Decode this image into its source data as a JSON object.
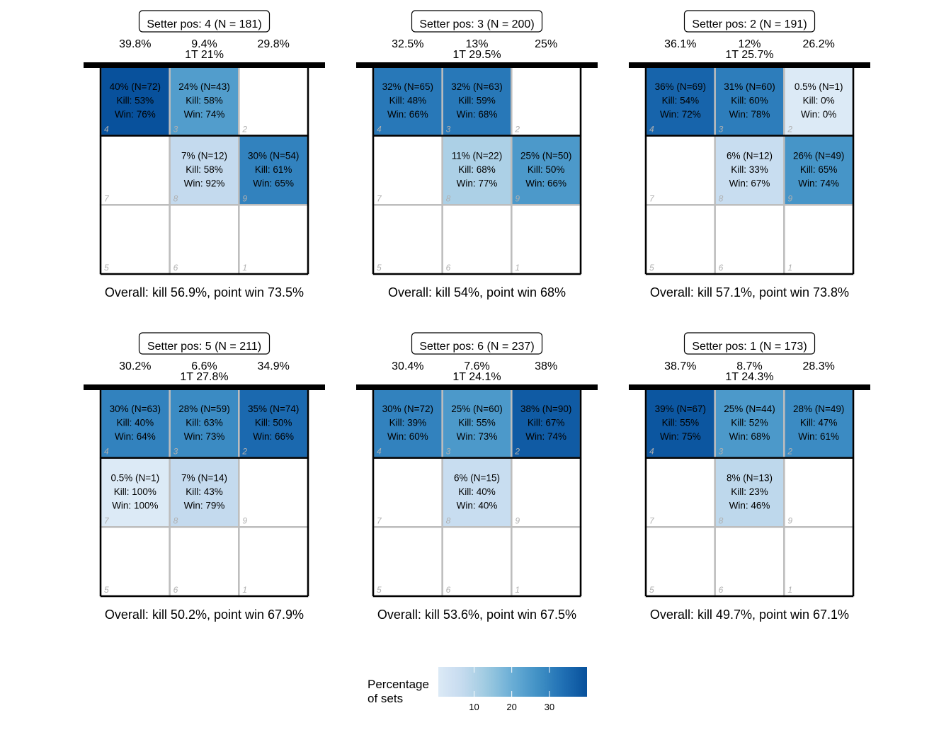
{
  "chart_data": {
    "type": "heatmap",
    "color_scale": [
      "#deebf7",
      "#c6dbef",
      "#9ecae1",
      "#6baed6",
      "#4292c6",
      "#2171b5",
      "#08519c"
    ],
    "fill_range": [
      0,
      40
    ],
    "legend": {
      "title_line1": "Percentage",
      "title_line2": "of sets",
      "ticks": [
        10,
        20,
        30
      ],
      "tick_labels": [
        "10",
        "20",
        "30"
      ],
      "placement": "bottom"
    },
    "panels": [
      {
        "title": "Setter pos: 4 (N = 181)",
        "head_left": "39.8%",
        "head_mid": "9.4%",
        "head_right": "29.8%",
        "head_1t": "1T 21%",
        "overall": "Overall: kill 56.9%, point win 73.5%",
        "cells": [
          {
            "zone": "4",
            "pct": 40,
            "line1": "40% (N=72)",
            "line2": "Kill: 53%",
            "line3": "Win: 76%"
          },
          {
            "zone": "3",
            "pct": 24,
            "line1": "24% (N=43)",
            "line2": "Kill: 58%",
            "line3": "Win: 74%"
          },
          {
            "zone": "2",
            "pct": null,
            "line1": "",
            "line2": "",
            "line3": ""
          },
          {
            "zone": "7",
            "pct": null,
            "line1": "",
            "line2": "",
            "line3": ""
          },
          {
            "zone": "8",
            "pct": 7,
            "line1": "7% (N=12)",
            "line2": "Kill: 58%",
            "line3": "Win: 92%"
          },
          {
            "zone": "9",
            "pct": 30,
            "line1": "30% (N=54)",
            "line2": "Kill: 61%",
            "line3": "Win: 65%"
          },
          {
            "zone": "5",
            "pct": null,
            "line1": "",
            "line2": "",
            "line3": ""
          },
          {
            "zone": "6",
            "pct": null,
            "line1": "",
            "line2": "",
            "line3": ""
          },
          {
            "zone": "1",
            "pct": null,
            "line1": "",
            "line2": "",
            "line3": ""
          }
        ]
      },
      {
        "title": "Setter pos: 3 (N = 200)",
        "head_left": "32.5%",
        "head_mid": "13%",
        "head_right": "25%",
        "head_1t": "1T 29.5%",
        "overall": "Overall: kill 54%, point win 68%",
        "cells": [
          {
            "zone": "4",
            "pct": 32,
            "line1": "32% (N=65)",
            "line2": "Kill: 48%",
            "line3": "Win: 66%"
          },
          {
            "zone": "3",
            "pct": 32,
            "line1": "32% (N=63)",
            "line2": "Kill: 59%",
            "line3": "Win: 68%"
          },
          {
            "zone": "2",
            "pct": null,
            "line1": "",
            "line2": "",
            "line3": ""
          },
          {
            "zone": "7",
            "pct": null,
            "line1": "",
            "line2": "",
            "line3": ""
          },
          {
            "zone": "8",
            "pct": 11,
            "line1": "11% (N=22)",
            "line2": "Kill: 68%",
            "line3": "Win: 77%"
          },
          {
            "zone": "9",
            "pct": 25,
            "line1": "25% (N=50)",
            "line2": "Kill: 50%",
            "line3": "Win: 66%"
          },
          {
            "zone": "5",
            "pct": null,
            "line1": "",
            "line2": "",
            "line3": ""
          },
          {
            "zone": "6",
            "pct": null,
            "line1": "",
            "line2": "",
            "line3": ""
          },
          {
            "zone": "1",
            "pct": null,
            "line1": "",
            "line2": "",
            "line3": ""
          }
        ]
      },
      {
        "title": "Setter pos: 2 (N = 191)",
        "head_left": "36.1%",
        "head_mid": "12%",
        "head_right": "26.2%",
        "head_1t": "1T 25.7%",
        "overall": "Overall: kill 57.1%, point win 73.8%",
        "cells": [
          {
            "zone": "4",
            "pct": 36,
            "line1": "36% (N=69)",
            "line2": "Kill: 54%",
            "line3": "Win: 72%"
          },
          {
            "zone": "3",
            "pct": 31,
            "line1": "31% (N=60)",
            "line2": "Kill: 60%",
            "line3": "Win: 78%"
          },
          {
            "zone": "2",
            "pct": 0.5,
            "line1": "0.5% (N=1)",
            "line2": "Kill: 0%",
            "line3": "Win: 0%"
          },
          {
            "zone": "7",
            "pct": null,
            "line1": "",
            "line2": "",
            "line3": ""
          },
          {
            "zone": "8",
            "pct": 6,
            "line1": "6% (N=12)",
            "line2": "Kill: 33%",
            "line3": "Win: 67%"
          },
          {
            "zone": "9",
            "pct": 26,
            "line1": "26% (N=49)",
            "line2": "Kill: 65%",
            "line3": "Win: 74%"
          },
          {
            "zone": "5",
            "pct": null,
            "line1": "",
            "line2": "",
            "line3": ""
          },
          {
            "zone": "6",
            "pct": null,
            "line1": "",
            "line2": "",
            "line3": ""
          },
          {
            "zone": "1",
            "pct": null,
            "line1": "",
            "line2": "",
            "line3": ""
          }
        ]
      },
      {
        "title": "Setter pos: 5 (N = 211)",
        "head_left": "30.2%",
        "head_mid": "6.6%",
        "head_right": "34.9%",
        "head_1t": "1T 27.8%",
        "overall": "Overall: kill 50.2%, point win 67.9%",
        "cells": [
          {
            "zone": "4",
            "pct": 30,
            "line1": "30% (N=63)",
            "line2": "Kill: 40%",
            "line3": "Win: 64%"
          },
          {
            "zone": "3",
            "pct": 28,
            "line1": "28% (N=59)",
            "line2": "Kill: 63%",
            "line3": "Win: 73%"
          },
          {
            "zone": "2",
            "pct": 35,
            "line1": "35% (N=74)",
            "line2": "Kill: 50%",
            "line3": "Win: 66%"
          },
          {
            "zone": "7",
            "pct": 0.5,
            "line1": "0.5% (N=1)",
            "line2": "Kill: 100%",
            "line3": "Win: 100%"
          },
          {
            "zone": "8",
            "pct": 7,
            "line1": "7% (N=14)",
            "line2": "Kill: 43%",
            "line3": "Win: 79%"
          },
          {
            "zone": "9",
            "pct": null,
            "line1": "",
            "line2": "",
            "line3": ""
          },
          {
            "zone": "5",
            "pct": null,
            "line1": "",
            "line2": "",
            "line3": ""
          },
          {
            "zone": "6",
            "pct": null,
            "line1": "",
            "line2": "",
            "line3": ""
          },
          {
            "zone": "1",
            "pct": null,
            "line1": "",
            "line2": "",
            "line3": ""
          }
        ]
      },
      {
        "title": "Setter pos: 6 (N = 237)",
        "head_left": "30.4%",
        "head_mid": "7.6%",
        "head_right": "38%",
        "head_1t": "1T 24.1%",
        "overall": "Overall: kill 53.6%, point win 67.5%",
        "cells": [
          {
            "zone": "4",
            "pct": 30,
            "line1": "30% (N=72)",
            "line2": "Kill: 39%",
            "line3": "Win: 60%"
          },
          {
            "zone": "3",
            "pct": 25,
            "line1": "25% (N=60)",
            "line2": "Kill: 55%",
            "line3": "Win: 73%"
          },
          {
            "zone": "2",
            "pct": 38,
            "line1": "38% (N=90)",
            "line2": "Kill: 67%",
            "line3": "Win: 74%"
          },
          {
            "zone": "7",
            "pct": null,
            "line1": "",
            "line2": "",
            "line3": ""
          },
          {
            "zone": "8",
            "pct": 6,
            "line1": "6% (N=15)",
            "line2": "Kill: 40%",
            "line3": "Win: 40%"
          },
          {
            "zone": "9",
            "pct": null,
            "line1": "",
            "line2": "",
            "line3": ""
          },
          {
            "zone": "5",
            "pct": null,
            "line1": "",
            "line2": "",
            "line3": ""
          },
          {
            "zone": "6",
            "pct": null,
            "line1": "",
            "line2": "",
            "line3": ""
          },
          {
            "zone": "1",
            "pct": null,
            "line1": "",
            "line2": "",
            "line3": ""
          }
        ]
      },
      {
        "title": "Setter pos: 1 (N = 173)",
        "head_left": "38.7%",
        "head_mid": "8.7%",
        "head_right": "28.3%",
        "head_1t": "1T 24.3%",
        "overall": "Overall: kill 49.7%, point win 67.1%",
        "cells": [
          {
            "zone": "4",
            "pct": 39,
            "line1": "39% (N=67)",
            "line2": "Kill: 55%",
            "line3": "Win: 75%"
          },
          {
            "zone": "3",
            "pct": 25,
            "line1": "25% (N=44)",
            "line2": "Kill: 52%",
            "line3": "Win: 68%"
          },
          {
            "zone": "2",
            "pct": 28,
            "line1": "28% (N=49)",
            "line2": "Kill: 47%",
            "line3": "Win: 61%"
          },
          {
            "zone": "7",
            "pct": null,
            "line1": "",
            "line2": "",
            "line3": ""
          },
          {
            "zone": "8",
            "pct": 8,
            "line1": "8% (N=13)",
            "line2": "Kill: 23%",
            "line3": "Win: 46%"
          },
          {
            "zone": "9",
            "pct": null,
            "line1": "",
            "line2": "",
            "line3": ""
          },
          {
            "zone": "5",
            "pct": null,
            "line1": "",
            "line2": "",
            "line3": ""
          },
          {
            "zone": "6",
            "pct": null,
            "line1": "",
            "line2": "",
            "line3": ""
          },
          {
            "zone": "1",
            "pct": null,
            "line1": "",
            "line2": "",
            "line3": ""
          }
        ]
      }
    ]
  }
}
